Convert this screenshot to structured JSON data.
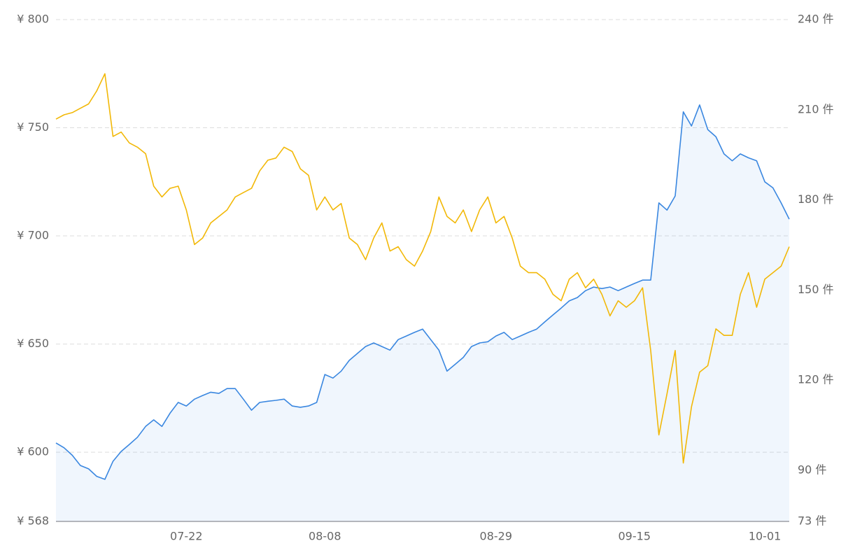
{
  "chart_data": {
    "type": "line",
    "categories": [
      null,
      null,
      null,
      null,
      null,
      null,
      null,
      null,
      null,
      null,
      null,
      null,
      null,
      null,
      null,
      null,
      "07-22",
      null,
      null,
      null,
      null,
      null,
      null,
      null,
      null,
      null,
      null,
      null,
      null,
      null,
      null,
      null,
      null,
      "08-08",
      null,
      null,
      null,
      null,
      null,
      null,
      null,
      null,
      null,
      null,
      null,
      null,
      null,
      null,
      null,
      null,
      null,
      null,
      null,
      null,
      "08-29",
      null,
      null,
      null,
      null,
      null,
      null,
      null,
      null,
      null,
      null,
      null,
      null,
      null,
      null,
      null,
      null,
      "09-15",
      null,
      null,
      null,
      null,
      null,
      null,
      null,
      null,
      null,
      null,
      null,
      null,
      null,
      null,
      null,
      "10-01",
      null,
      null,
      null
    ],
    "series": [
      {
        "color": "#f2b807",
        "axis": "y",
        "values": [
          754,
          756,
          757,
          759,
          761,
          767,
          775,
          746,
          748,
          743,
          741,
          738,
          723,
          718,
          722,
          723,
          712,
          696,
          699,
          706,
          709,
          712,
          718,
          720,
          722,
          730,
          735,
          736,
          741,
          739,
          731,
          728,
          712,
          718,
          712,
          715,
          699,
          696,
          689,
          699,
          706,
          693,
          695,
          689,
          686,
          693,
          702,
          718,
          709,
          706,
          712,
          702,
          712,
          718,
          706,
          709,
          699,
          686,
          683,
          683,
          680,
          673,
          670,
          680,
          683,
          676,
          680,
          673,
          663,
          670,
          667,
          670,
          676,
          647,
          608,
          627,
          647,
          595,
          621,
          637,
          640,
          657,
          654,
          654,
          673,
          683,
          667,
          680,
          683,
          686,
          695
        ]
      },
      {
        "color": "#3a87e0",
        "axis": "y2",
        "area": true,
        "values": [
          99.1,
          97.5,
          95,
          91.6,
          90.5,
          88,
          87,
          93,
          96.3,
          98.6,
          101,
          104.6,
          106.8,
          104.6,
          109,
          112.6,
          111.4,
          113.7,
          114.9,
          116,
          115.6,
          117.2,
          117.2,
          113.7,
          110,
          112.6,
          113,
          113.3,
          113.7,
          111.4,
          111,
          111.4,
          112.6,
          121.9,
          120.7,
          123,
          126.6,
          128.9,
          131.2,
          132.4,
          131.2,
          130,
          133.5,
          134.7,
          135.9,
          137,
          133.5,
          130,
          123,
          125.3,
          127.6,
          131.2,
          132.4,
          132.8,
          134.7,
          135.9,
          133.5,
          134.7,
          135.9,
          137,
          139.4,
          141.7,
          144,
          146.4,
          147.5,
          149.8,
          151,
          150.5,
          151,
          149.8,
          151,
          152.2,
          153.3,
          153.3,
          179,
          176.6,
          181.3,
          209.3,
          204.6,
          211.6,
          203.4,
          201,
          195.3,
          193,
          195.3,
          194,
          193,
          186,
          184,
          179,
          173.6
        ]
      }
    ],
    "ylim": [
      568,
      800
    ],
    "yticks": [
      {
        "value": 568,
        "label": "¥ 568"
      },
      {
        "value": 600,
        "label": "¥ 600"
      },
      {
        "value": 650,
        "label": "¥ 650"
      },
      {
        "value": 700,
        "label": "¥ 700"
      },
      {
        "value": 750,
        "label": "¥ 750"
      },
      {
        "value": 800,
        "label": "¥ 800"
      }
    ],
    "y2lim": [
      73,
      240
    ],
    "y2ticks": [
      {
        "value": 73,
        "label": "73 件"
      },
      {
        "value": 90,
        "label": "90 件"
      },
      {
        "value": 120,
        "label": "120 件"
      },
      {
        "value": 150,
        "label": "150 件"
      },
      {
        "value": 180,
        "label": "180 件"
      },
      {
        "value": 210,
        "label": "210 件"
      },
      {
        "value": 240,
        "label": "240 件"
      }
    ],
    "grid": true
  }
}
